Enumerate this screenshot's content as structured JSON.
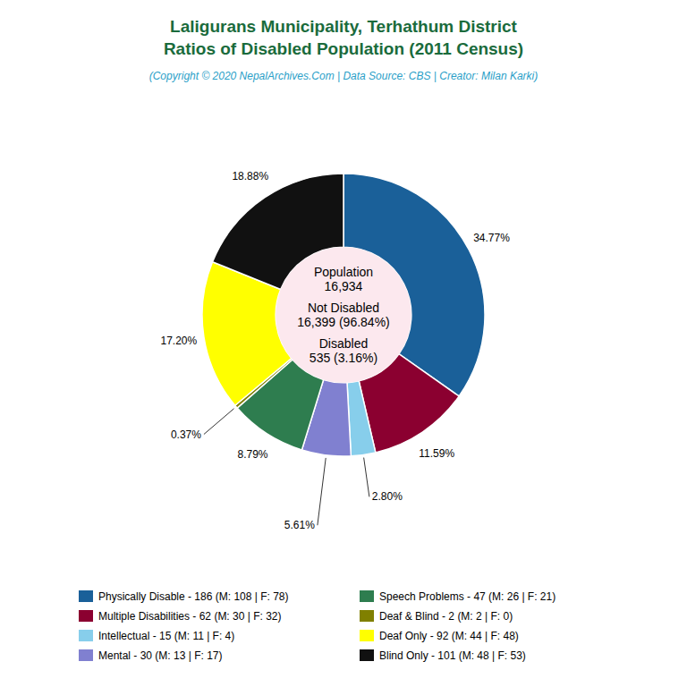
{
  "chart_data": {
    "type": "donut",
    "title": "Laligurans Municipality, Terhathum District\nRatios of Disabled Population (2011 Census)",
    "subtitle": "(Copyright © 2020 NepalArchives.Com | Data Source: CBS | Creator: Milan Karki)",
    "categories": [
      "Physically Disable - 186 (M: 108 | F: 78)",
      "Multiple Disabilities - 62 (M: 30 | F: 32)",
      "Intellectual - 15 (M: 11 | F: 4)",
      "Mental - 30 (M: 13 | F: 17)",
      "Speech Problems - 47 (M: 26 | F: 21)",
      "Deaf & Blind - 2 (M: 2 | F: 0)",
      "Deaf Only - 92 (M: 44 | F: 48)",
      "Blind Only - 101 (M: 48 | F: 53)"
    ],
    "values": [
      34.77,
      11.59,
      2.8,
      5.61,
      8.79,
      0.37,
      17.2,
      18.88
    ],
    "value_labels": [
      "34.77%",
      "11.59%",
      "2.80%",
      "5.61%",
      "8.79%",
      "0.37%",
      "17.20%",
      "18.88%"
    ],
    "colors": [
      "#1a6099",
      "#8b0030",
      "#87ceeb",
      "#8080d0",
      "#2e7d4f",
      "#808000",
      "#ffff00",
      "#111111"
    ],
    "data_labels": true,
    "legend": "bottom",
    "annotations": [
      "Population",
      "16,934",
      "Not Disabled",
      "16,399 (96.84%)",
      "Disabled",
      "535 (3.16%)"
    ]
  }
}
